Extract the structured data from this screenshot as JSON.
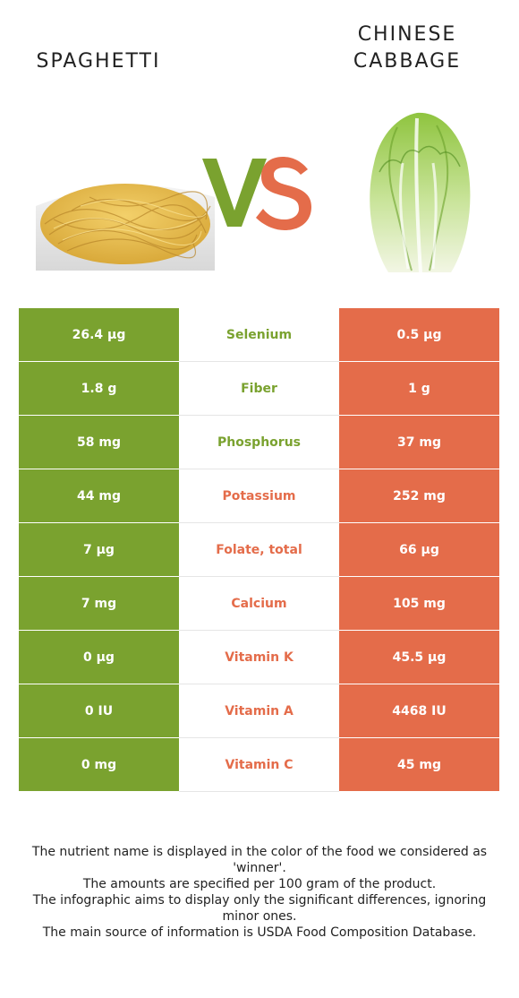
{
  "header": {
    "left_title": [
      "SPAGHETTI"
    ],
    "right_title": [
      "CHINESE",
      "CABBAGE"
    ],
    "vs_colors": {
      "v": "#7aa22f",
      "s": "#e46c4a"
    }
  },
  "colors": {
    "left": "#7aa22f",
    "right": "#e46c4a"
  },
  "rows": [
    {
      "left": "26.4 µg",
      "nutrient": "Selenium",
      "right": "0.5 µg",
      "winner": "left"
    },
    {
      "left": "1.8 g",
      "nutrient": "Fiber",
      "right": "1 g",
      "winner": "left"
    },
    {
      "left": "58 mg",
      "nutrient": "Phosphorus",
      "right": "37 mg",
      "winner": "left"
    },
    {
      "left": "44 mg",
      "nutrient": "Potassium",
      "right": "252 mg",
      "winner": "right"
    },
    {
      "left": "7 µg",
      "nutrient": "Folate, total",
      "right": "66 µg",
      "winner": "right"
    },
    {
      "left": "7 mg",
      "nutrient": "Calcium",
      "right": "105 mg",
      "winner": "right"
    },
    {
      "left": "0 µg",
      "nutrient": "Vitamin K",
      "right": "45.5 µg",
      "winner": "right"
    },
    {
      "left": "0 IU",
      "nutrient": "Vitamin A",
      "right": "4468 IU",
      "winner": "right"
    },
    {
      "left": "0 mg",
      "nutrient": "Vitamin C",
      "right": "45 mg",
      "winner": "right"
    }
  ],
  "footer": [
    "The nutrient name is displayed in the color of the food we considered as 'winner'.",
    "The amounts are specified per 100 gram of the product.",
    "The infographic aims to display only the significant differences, ignoring minor ones.",
    "The main source of information is USDA Food Composition Database."
  ]
}
